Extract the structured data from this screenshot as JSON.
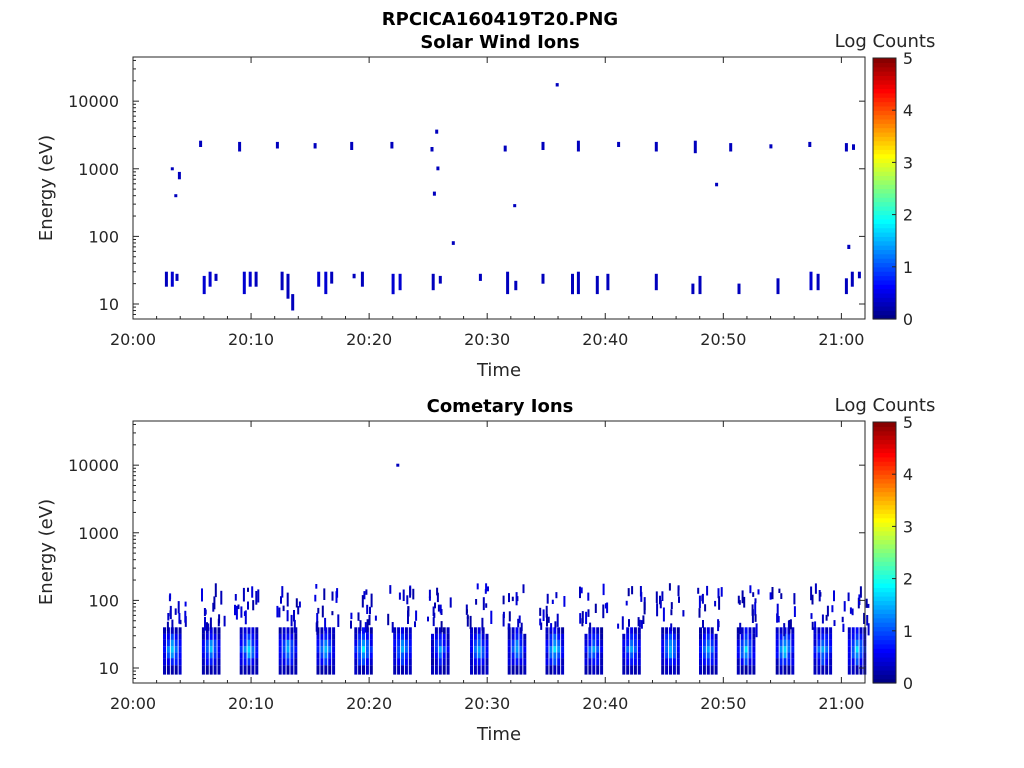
{
  "figure": {
    "title": "RPCICA160419T20.PNG"
  },
  "colors": {
    "background": "#ffffff",
    "axis": "#262626",
    "colormap": "jet"
  },
  "chart_data": [
    {
      "type": "heatmap",
      "title": "Solar Wind Ions",
      "xlabel": "Time",
      "ylabel": "Energy (eV)",
      "xlim": [
        "20:00",
        "21:02"
      ],
      "ylim": [
        6,
        45000
      ],
      "yscale": "log",
      "x_ticks": [
        "20:00",
        "20:10",
        "20:20",
        "20:30",
        "20:40",
        "20:50",
        "21:00"
      ],
      "y_ticks": [
        "10",
        "100",
        "1000",
        "10000"
      ],
      "colorbar": {
        "label": "Log Counts",
        "range": [
          0,
          5
        ],
        "ticks": [
          "0",
          "1",
          "2",
          "3",
          "4",
          "5"
        ]
      },
      "grid": false,
      "events": [
        {
          "t": 2.7,
          "e": [
            18,
            30
          ],
          "c": 0.3
        },
        {
          "t": 3.2,
          "e": [
            18,
            30
          ],
          "c": 0.4
        },
        {
          "t": 3.6,
          "e": [
            22,
            28
          ],
          "c": 0.3
        },
        {
          "t": 5.9,
          "e": [
            14,
            26
          ],
          "c": 0.4
        },
        {
          "t": 6.4,
          "e": [
            18,
            30
          ],
          "c": 0.4
        },
        {
          "t": 6.9,
          "e": [
            22,
            28
          ],
          "c": 0.3
        },
        {
          "t": 9.3,
          "e": [
            14,
            30
          ],
          "c": 0.4
        },
        {
          "t": 9.8,
          "e": [
            18,
            30
          ],
          "c": 0.4
        },
        {
          "t": 10.3,
          "e": [
            18,
            30
          ],
          "c": 0.3
        },
        {
          "t": 12.5,
          "e": [
            16,
            30
          ],
          "c": 0.3
        },
        {
          "t": 13.0,
          "e": [
            12,
            28
          ],
          "c": 0.3
        },
        {
          "t": 13.4,
          "e": [
            8,
            14
          ],
          "c": 0.3
        },
        {
          "t": 15.6,
          "e": [
            18,
            30
          ],
          "c": 0.4
        },
        {
          "t": 16.2,
          "e": [
            14,
            30
          ],
          "c": 0.4
        },
        {
          "t": 16.7,
          "e": [
            20,
            30
          ],
          "c": 0.3
        },
        {
          "t": 18.6,
          "e": [
            24,
            28
          ],
          "c": 0.3
        },
        {
          "t": 19.3,
          "e": [
            18,
            30
          ],
          "c": 0.3
        },
        {
          "t": 21.9,
          "e": [
            14,
            28
          ],
          "c": 0.4
        },
        {
          "t": 22.5,
          "e": [
            16,
            28
          ],
          "c": 0.4
        },
        {
          "t": 25.3,
          "e": [
            16,
            28
          ],
          "c": 0.3
        },
        {
          "t": 25.9,
          "e": [
            20,
            26
          ],
          "c": 0.3
        },
        {
          "t": 29.3,
          "e": [
            22,
            28
          ],
          "c": 0.3
        },
        {
          "t": 31.6,
          "e": [
            14,
            30
          ],
          "c": 0.3
        },
        {
          "t": 32.3,
          "e": [
            16,
            22
          ],
          "c": 0.3
        },
        {
          "t": 34.6,
          "e": [
            20,
            28
          ],
          "c": 0.3
        },
        {
          "t": 37.1,
          "e": [
            14,
            28
          ],
          "c": 0.3
        },
        {
          "t": 37.6,
          "e": [
            14,
            30
          ],
          "c": 0.3
        },
        {
          "t": 39.2,
          "e": [
            14,
            26
          ],
          "c": 0.3
        },
        {
          "t": 40.1,
          "e": [
            16,
            28
          ],
          "c": 0.3
        },
        {
          "t": 44.2,
          "e": [
            16,
            28
          ],
          "c": 0.3
        },
        {
          "t": 47.3,
          "e": [
            14,
            20
          ],
          "c": 0.3
        },
        {
          "t": 47.9,
          "e": [
            14,
            26
          ],
          "c": 0.3
        },
        {
          "t": 51.2,
          "e": [
            14,
            20
          ],
          "c": 0.3
        },
        {
          "t": 54.5,
          "e": [
            14,
            24
          ],
          "c": 0.3
        },
        {
          "t": 57.3,
          "e": [
            16,
            30
          ],
          "c": 0.4
        },
        {
          "t": 57.9,
          "e": [
            16,
            28
          ],
          "c": 0.3
        },
        {
          "t": 60.3,
          "e": [
            14,
            24
          ],
          "c": 0.3
        },
        {
          "t": 60.8,
          "e": [
            18,
            30
          ],
          "c": 0.3
        },
        {
          "t": 61.4,
          "e": [
            24,
            30
          ],
          "c": 0.3
        },
        {
          "t": 5.6,
          "e": [
            2100,
            2600
          ],
          "c": 0.3
        },
        {
          "t": 8.9,
          "e": [
            1800,
            2500
          ],
          "c": 0.3
        },
        {
          "t": 12.1,
          "e": [
            2000,
            2500
          ],
          "c": 0.3
        },
        {
          "t": 15.3,
          "e": [
            2000,
            2400
          ],
          "c": 0.3
        },
        {
          "t": 18.4,
          "e": [
            1900,
            2500
          ],
          "c": 0.3
        },
        {
          "t": 21.8,
          "e": [
            2000,
            2500
          ],
          "c": 0.3
        },
        {
          "t": 25.2,
          "e": [
            1800,
            2100
          ],
          "c": 0.3
        },
        {
          "t": 31.4,
          "e": [
            1800,
            2200
          ],
          "c": 0.3
        },
        {
          "t": 34.6,
          "e": [
            1900,
            2500
          ],
          "c": 0.3
        },
        {
          "t": 37.6,
          "e": [
            1800,
            2600
          ],
          "c": 0.3
        },
        {
          "t": 41.0,
          "e": [
            2100,
            2500
          ],
          "c": 0.3
        },
        {
          "t": 44.2,
          "e": [
            1800,
            2500
          ],
          "c": 0.3
        },
        {
          "t": 47.5,
          "e": [
            1700,
            2600
          ],
          "c": 0.3
        },
        {
          "t": 50.5,
          "e": [
            1800,
            2400
          ],
          "c": 0.3
        },
        {
          "t": 53.9,
          "e": [
            2000,
            2300
          ],
          "c": 0.3
        },
        {
          "t": 57.2,
          "e": [
            2100,
            2500
          ],
          "c": 0.3
        },
        {
          "t": 60.3,
          "e": [
            1800,
            2400
          ],
          "c": 0.3
        },
        {
          "t": 60.9,
          "e": [
            1900,
            2300
          ],
          "c": 0.3
        },
        {
          "t": 3.2,
          "e": [
            950,
            1050
          ],
          "c": 0.3
        },
        {
          "t": 3.5,
          "e": [
            380,
            420
          ],
          "c": 0.3
        },
        {
          "t": 3.8,
          "e": [
            700,
            900
          ],
          "c": 0.3
        },
        {
          "t": 25.6,
          "e": [
            3300,
            3800
          ],
          "c": 0.3
        },
        {
          "t": 25.7,
          "e": [
            950,
            1080
          ],
          "c": 0.3
        },
        {
          "t": 25.4,
          "e": [
            400,
            460
          ],
          "c": 0.3
        },
        {
          "t": 27.0,
          "e": [
            75,
            85
          ],
          "c": 0.3
        },
        {
          "t": 32.2,
          "e": [
            270,
            300
          ],
          "c": 0.3
        },
        {
          "t": 35.8,
          "e": [
            16500,
            18500
          ],
          "c": 0.3
        },
        {
          "t": 49.3,
          "e": [
            550,
            620
          ],
          "c": 0.3
        },
        {
          "t": 60.5,
          "e": [
            65,
            75
          ],
          "c": 0.3
        }
      ]
    },
    {
      "type": "heatmap",
      "title": "Cometary Ions",
      "xlabel": "Time",
      "ylabel": "Energy (eV)",
      "xlim": [
        "20:00",
        "21:02"
      ],
      "ylim": [
        6,
        45000
      ],
      "yscale": "log",
      "x_ticks": [
        "20:00",
        "20:10",
        "20:20",
        "20:30",
        "20:40",
        "20:50",
        "21:00"
      ],
      "y_ticks": [
        "10",
        "100",
        "1000",
        "10000"
      ],
      "colorbar": {
        "label": "Log Counts",
        "range": [
          0,
          5
        ],
        "ticks": [
          "0",
          "1",
          "2",
          "3",
          "4",
          "5"
        ]
      },
      "grid": false,
      "bursts": [
        {
          "t": 3.2,
          "peak": 1.6
        },
        {
          "t": 6.5,
          "peak": 1.5
        },
        {
          "t": 9.7,
          "peak": 1.7
        },
        {
          "t": 13.0,
          "peak": 1.5
        },
        {
          "t": 16.2,
          "peak": 1.5
        },
        {
          "t": 19.4,
          "peak": 1.7
        },
        {
          "t": 22.7,
          "peak": 1.5
        },
        {
          "t": 25.9,
          "peak": 1.3
        },
        {
          "t": 29.2,
          "peak": 1.5
        },
        {
          "t": 32.4,
          "peak": 1.5
        },
        {
          "t": 35.6,
          "peak": 1.7
        },
        {
          "t": 38.9,
          "peak": 1.4
        },
        {
          "t": 42.1,
          "peak": 1.4
        },
        {
          "t": 45.4,
          "peak": 1.6
        },
        {
          "t": 48.6,
          "peak": 1.4
        },
        {
          "t": 51.8,
          "peak": 1.6
        },
        {
          "t": 55.1,
          "peak": 1.7
        },
        {
          "t": 58.3,
          "peak": 1.5
        },
        {
          "t": 61.2,
          "peak": 1.6
        }
      ],
      "events": [
        {
          "t": 22.3,
          "e": [
            9500,
            10500
          ],
          "c": 0.3
        }
      ]
    }
  ]
}
